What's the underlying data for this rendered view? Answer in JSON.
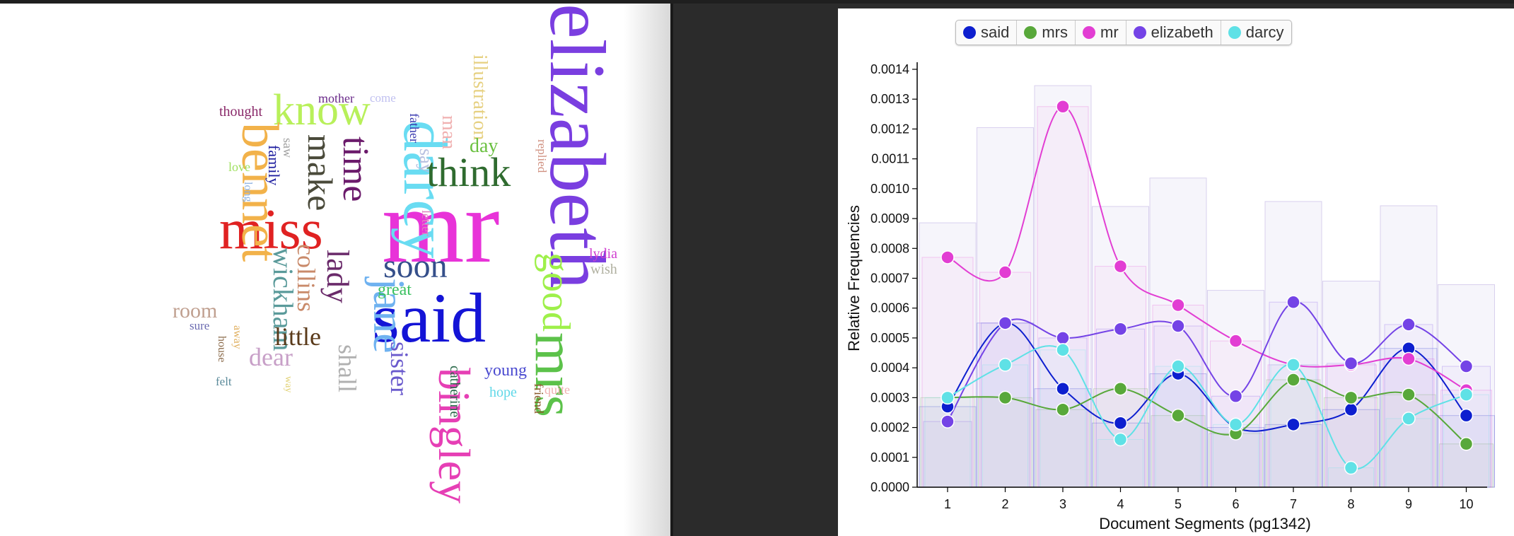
{
  "wordcloud": {
    "words": [
      {
        "text": "elizabeth",
        "color": "#7a3ee0"
      },
      {
        "text": "mr",
        "color": "#e833d8"
      },
      {
        "text": "said",
        "color": "#1414d6"
      },
      {
        "text": "mrs",
        "color": "#5cc24a"
      },
      {
        "text": "darcy",
        "color": "#69dcf2"
      },
      {
        "text": "bingley",
        "color": "#e63fb5"
      },
      {
        "text": "miss",
        "color": "#e02222"
      },
      {
        "text": "know",
        "color": "#b8f05a"
      },
      {
        "text": "bennet",
        "color": "#f2b24a"
      },
      {
        "text": "think",
        "color": "#2f6b2f"
      },
      {
        "text": "jane",
        "color": "#6fb2f0"
      },
      {
        "text": "good",
        "color": "#9ef04a"
      },
      {
        "text": "soon",
        "color": "#354f8a"
      },
      {
        "text": "time",
        "color": "#6b1a6b"
      },
      {
        "text": "make",
        "color": "#4a4a3a"
      },
      {
        "text": "lady",
        "color": "#6a2a6a"
      },
      {
        "text": "wickham",
        "color": "#5a9a9a"
      },
      {
        "text": "collins",
        "color": "#c98a6a"
      },
      {
        "text": "sister",
        "color": "#6a5acd"
      },
      {
        "text": "shall",
        "color": "#b0b0b0"
      },
      {
        "text": "little",
        "color": "#5a3a1a"
      },
      {
        "text": "dear",
        "color": "#c8a0c8"
      },
      {
        "text": "room",
        "color": "#c0a090"
      },
      {
        "text": "illustration",
        "color": "#e6d080"
      },
      {
        "text": "man",
        "color": "#f0b0b0"
      },
      {
        "text": "say",
        "color": "#b8c0e0"
      },
      {
        "text": "day",
        "color": "#6ac040"
      },
      {
        "text": "great",
        "color": "#3ac060"
      },
      {
        "text": "young",
        "color": "#4a4ad0"
      },
      {
        "text": "catherine",
        "color": "#2a6a4a"
      },
      {
        "text": "hope",
        "color": "#60d8e8"
      },
      {
        "text": "friend",
        "color": "#8a5a2a"
      },
      {
        "text": "quite",
        "color": "#f0b0b0"
      },
      {
        "text": "lydia",
        "color": "#d040d0"
      },
      {
        "text": "wish",
        "color": "#b0b0a0"
      },
      {
        "text": "replied",
        "color": "#d09080"
      },
      {
        "text": "letter",
        "color": "#e080c0"
      },
      {
        "text": "father",
        "color": "#3a3ab0"
      },
      {
        "text": "family",
        "color": "#2020a0"
      },
      {
        "text": "saw",
        "color": "#a0a0a0"
      },
      {
        "text": "thought",
        "color": "#8a2a6a"
      },
      {
        "text": "mother",
        "color": "#6a2a8a"
      },
      {
        "text": "come",
        "color": "#c0c0f0"
      },
      {
        "text": "love",
        "color": "#a0e060"
      },
      {
        "text": "long",
        "color": "#8ab0e0"
      },
      {
        "text": "sure",
        "color": "#6a6ab0"
      },
      {
        "text": "away",
        "color": "#e0b060"
      },
      {
        "text": "house",
        "color": "#8a6a4a"
      },
      {
        "text": "felt",
        "color": "#5a8a9a"
      },
      {
        "text": "way",
        "color": "#e0d070"
      }
    ]
  },
  "legend": [
    {
      "label": "said",
      "color": "#0d1fcf"
    },
    {
      "label": "mrs",
      "color": "#58a83a"
    },
    {
      "label": "mr",
      "color": "#e23ed3"
    },
    {
      "label": "elizabeth",
      "color": "#7443e6"
    },
    {
      "label": "darcy",
      "color": "#5fe1e6"
    }
  ],
  "chart_data": {
    "type": "line",
    "xlabel": "Document Segments (pg1342)",
    "ylabel": "Relative Frequencies",
    "x": [
      1,
      2,
      3,
      4,
      5,
      6,
      7,
      8,
      9,
      10
    ],
    "ylim": [
      0,
      0.0014
    ],
    "yticks": [
      "0.0000",
      "0.0001",
      "0.0002",
      "0.0003",
      "0.0004",
      "0.0005",
      "0.0006",
      "0.0007",
      "0.0008",
      "0.0009",
      "0.0010",
      "0.0011",
      "0.0012",
      "0.0013",
      "0.0014"
    ],
    "series": [
      {
        "name": "said",
        "color": "#0d1fcf",
        "values": [
          0.00027,
          0.00055,
          0.00033,
          0.000215,
          0.00038,
          0.0002,
          0.00021,
          0.00026,
          0.000465,
          0.00024
        ]
      },
      {
        "name": "mrs",
        "color": "#58a83a",
        "values": [
          0.0003,
          0.0003,
          0.00026,
          0.00033,
          0.00024,
          0.00018,
          0.00036,
          0.0003,
          0.00031,
          0.000145
        ]
      },
      {
        "name": "mr",
        "color": "#e23ed3",
        "values": [
          0.00077,
          0.00072,
          0.001275,
          0.00074,
          0.00061,
          0.00049,
          0.00041,
          0.00041,
          0.00043,
          0.000325
        ]
      },
      {
        "name": "elizabeth",
        "color": "#7443e6",
        "values": [
          0.00022,
          0.00055,
          0.0005,
          0.00053,
          0.00054,
          0.000305,
          0.00062,
          0.000415,
          0.000545,
          0.000405
        ]
      },
      {
        "name": "darcy",
        "color": "#5fe1e6",
        "values": [
          0.0003,
          0.00041,
          0.00046,
          0.00016,
          0.000405,
          0.00021,
          0.00041,
          6.5e-05,
          0.00023,
          0.00031
        ]
      }
    ]
  }
}
